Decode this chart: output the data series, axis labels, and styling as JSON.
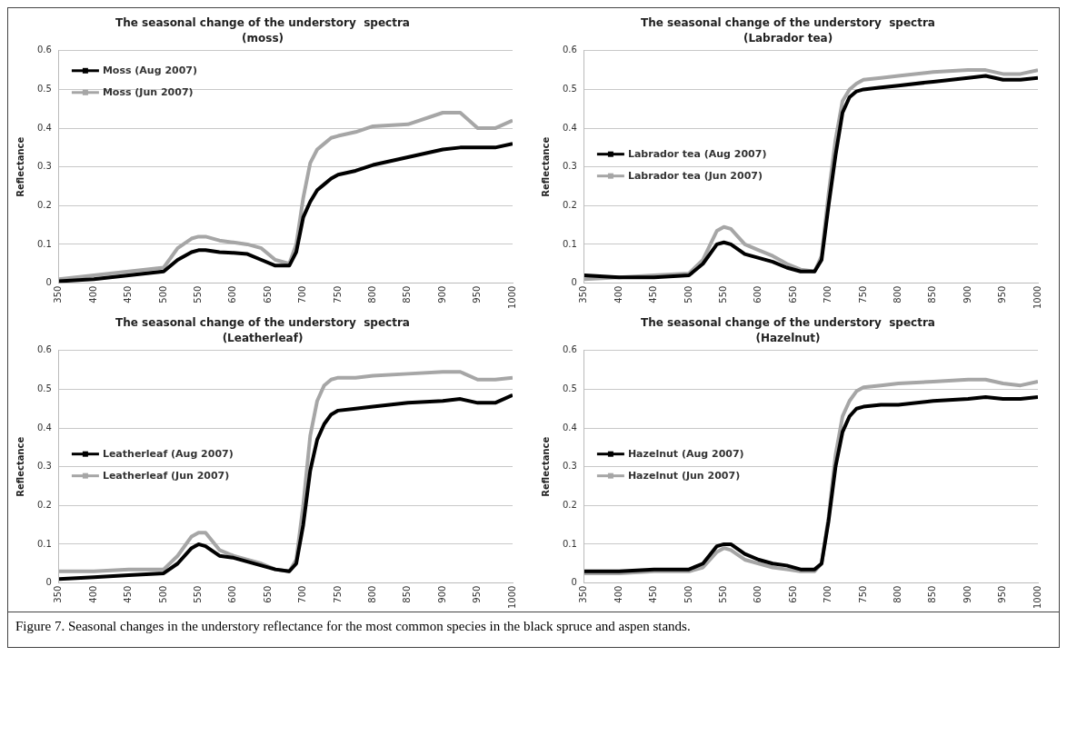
{
  "chart_data": [
    {
      "type": "line",
      "title": "The seasonal change of the understory  spectra",
      "subtitle": "(moss)",
      "ylabel": "Reflectance",
      "x": [
        350,
        400,
        450,
        500,
        520,
        540,
        550,
        560,
        580,
        600,
        620,
        640,
        660,
        680,
        690,
        700,
        710,
        720,
        730,
        740,
        750,
        775,
        800,
        850,
        900,
        925,
        950,
        975,
        1000
      ],
      "xlim": [
        350,
        1000
      ],
      "xticks": [
        350,
        400,
        450,
        500,
        550,
        600,
        650,
        700,
        750,
        800,
        850,
        900,
        950,
        1000
      ],
      "ylim": [
        0,
        0.6
      ],
      "yticks": [
        0,
        0.1,
        0.2,
        0.3,
        0.4,
        0.5,
        0.6
      ],
      "grid": "y",
      "legend": "top left",
      "series": [
        {
          "name": "Moss (Aug 2007)",
          "color": "#000000",
          "values": [
            0.005,
            0.01,
            0.02,
            0.03,
            0.06,
            0.08,
            0.085,
            0.085,
            0.08,
            0.078,
            0.075,
            0.06,
            0.045,
            0.045,
            0.08,
            0.17,
            0.21,
            0.24,
            0.255,
            0.27,
            0.28,
            0.29,
            0.305,
            0.325,
            0.345,
            0.35,
            0.35,
            0.35,
            0.36
          ]
        },
        {
          "name": "Moss (Jun 2007)",
          "color": "#a6a6a6",
          "values": [
            0.01,
            0.02,
            0.03,
            0.04,
            0.09,
            0.115,
            0.12,
            0.12,
            0.11,
            0.105,
            0.1,
            0.09,
            0.06,
            0.05,
            0.1,
            0.22,
            0.31,
            0.345,
            0.36,
            0.375,
            0.38,
            0.39,
            0.405,
            0.41,
            0.44,
            0.44,
            0.4,
            0.4,
            0.42
          ]
        }
      ]
    },
    {
      "type": "line",
      "title": "The seasonal change of the understory  spectra",
      "subtitle": "(Labrador tea)",
      "ylabel": "Reflectance",
      "x": [
        350,
        400,
        450,
        500,
        520,
        540,
        550,
        560,
        580,
        600,
        620,
        640,
        660,
        680,
        690,
        700,
        710,
        720,
        730,
        740,
        750,
        775,
        800,
        850,
        900,
        925,
        950,
        975,
        1000
      ],
      "xlim": [
        350,
        1000
      ],
      "xticks": [
        350,
        400,
        450,
        500,
        550,
        600,
        650,
        700,
        750,
        800,
        850,
        900,
        950,
        1000
      ],
      "ylim": [
        0,
        0.6
      ],
      "yticks": [
        0,
        0.1,
        0.2,
        0.3,
        0.4,
        0.5,
        0.6
      ],
      "grid": "y",
      "legend": "left",
      "series": [
        {
          "name": "Labrador tea (Aug 2007)",
          "color": "#000000",
          "values": [
            0.02,
            0.015,
            0.015,
            0.02,
            0.05,
            0.1,
            0.105,
            0.1,
            0.075,
            0.065,
            0.055,
            0.04,
            0.03,
            0.03,
            0.06,
            0.2,
            0.33,
            0.44,
            0.48,
            0.495,
            0.5,
            0.505,
            0.51,
            0.52,
            0.53,
            0.535,
            0.525,
            0.525,
            0.53
          ]
        },
        {
          "name": "Labrador tea (Jun 2007)",
          "color": "#a6a6a6",
          "values": [
            0.01,
            0.015,
            0.02,
            0.025,
            0.06,
            0.135,
            0.145,
            0.14,
            0.1,
            0.085,
            0.07,
            0.05,
            0.035,
            0.03,
            0.07,
            0.23,
            0.37,
            0.47,
            0.5,
            0.515,
            0.525,
            0.53,
            0.535,
            0.545,
            0.55,
            0.55,
            0.54,
            0.54,
            0.55
          ]
        }
      ]
    },
    {
      "type": "line",
      "title": "The seasonal change of the understory  spectra",
      "subtitle": "(Leatherleaf)",
      "ylabel": "Reflectance",
      "x": [
        350,
        400,
        450,
        500,
        520,
        540,
        550,
        560,
        580,
        600,
        620,
        640,
        660,
        680,
        690,
        700,
        710,
        720,
        730,
        740,
        750,
        775,
        800,
        850,
        900,
        925,
        950,
        975,
        1000
      ],
      "xlim": [
        350,
        1000
      ],
      "xticks": [
        350,
        400,
        450,
        500,
        550,
        600,
        650,
        700,
        750,
        800,
        850,
        900,
        950,
        1000
      ],
      "ylim": [
        0,
        0.6
      ],
      "yticks": [
        0,
        0.1,
        0.2,
        0.3,
        0.4,
        0.5,
        0.6
      ],
      "grid": "y",
      "legend": "left",
      "series": [
        {
          "name": "Leatherleaf (Aug 2007)",
          "color": "#000000",
          "values": [
            0.01,
            0.015,
            0.02,
            0.025,
            0.05,
            0.09,
            0.1,
            0.095,
            0.07,
            0.065,
            0.055,
            0.045,
            0.035,
            0.03,
            0.05,
            0.15,
            0.29,
            0.37,
            0.41,
            0.435,
            0.445,
            0.45,
            0.455,
            0.465,
            0.47,
            0.475,
            0.465,
            0.465,
            0.485
          ]
        },
        {
          "name": "Leatherleaf (Jun 2007)",
          "color": "#a6a6a6",
          "values": [
            0.03,
            0.03,
            0.035,
            0.035,
            0.07,
            0.12,
            0.13,
            0.13,
            0.085,
            0.07,
            0.06,
            0.05,
            0.035,
            0.03,
            0.06,
            0.2,
            0.38,
            0.47,
            0.51,
            0.525,
            0.53,
            0.53,
            0.535,
            0.54,
            0.545,
            0.545,
            0.525,
            0.525,
            0.53
          ]
        }
      ]
    },
    {
      "type": "line",
      "title": "The seasonal change of the understory  spectra",
      "subtitle": "(Hazelnut)",
      "ylabel": "Reflectance",
      "x": [
        350,
        400,
        450,
        500,
        520,
        540,
        550,
        560,
        580,
        600,
        620,
        640,
        660,
        680,
        690,
        700,
        710,
        720,
        730,
        740,
        750,
        775,
        800,
        850,
        900,
        925,
        950,
        975,
        1000
      ],
      "xlim": [
        350,
        1000
      ],
      "xticks": [
        350,
        400,
        450,
        500,
        550,
        600,
        650,
        700,
        750,
        800,
        850,
        900,
        950,
        1000
      ],
      "ylim": [
        0,
        0.6
      ],
      "yticks": [
        0,
        0.1,
        0.2,
        0.3,
        0.4,
        0.5,
        0.6
      ],
      "grid": "y",
      "legend": "left",
      "annotations": [
        "Figure 7. Seasonal changes in the understory reflectance for the most common species in the black spruce and aspen stands."
      ],
      "series": [
        {
          "name": "Hazelnut (Aug 2007)",
          "color": "#000000",
          "values": [
            0.03,
            0.03,
            0.035,
            0.035,
            0.05,
            0.095,
            0.1,
            0.1,
            0.075,
            0.06,
            0.05,
            0.045,
            0.035,
            0.035,
            0.05,
            0.16,
            0.3,
            0.39,
            0.43,
            0.45,
            0.455,
            0.46,
            0.46,
            0.47,
            0.475,
            0.48,
            0.475,
            0.475,
            0.48
          ]
        },
        {
          "name": "Hazelnut (Jun 2007)",
          "color": "#a6a6a6",
          "values": [
            0.025,
            0.025,
            0.03,
            0.03,
            0.04,
            0.08,
            0.09,
            0.085,
            0.06,
            0.05,
            0.04,
            0.035,
            0.03,
            0.03,
            0.05,
            0.17,
            0.33,
            0.43,
            0.47,
            0.495,
            0.505,
            0.51,
            0.515,
            0.52,
            0.525,
            0.525,
            0.515,
            0.51,
            0.52
          ]
        }
      ]
    }
  ]
}
